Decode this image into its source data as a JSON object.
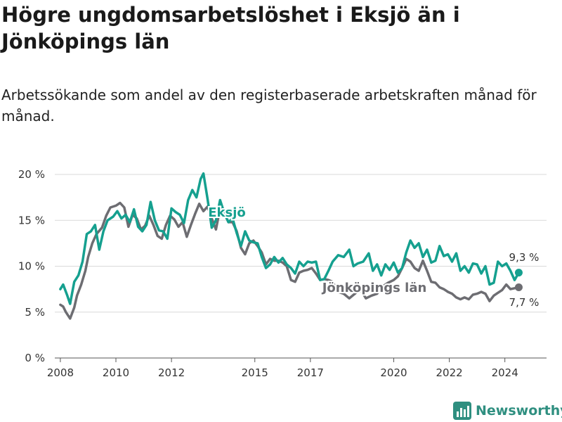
{
  "header": {
    "title": "Högre ungdomsarbetslöshet i Eksjö än i Jönköpings län",
    "subtitle": "Arbetssökande som andel av den registerbaserade arbetskraften månad för månad."
  },
  "brand": {
    "name": "Newsworthy"
  },
  "chart_data": {
    "type": "line",
    "title": "Högre ungdomsarbetslöshet i Eksjö än i Jönköpings län",
    "xlabel": "",
    "ylabel": "",
    "ylim": [
      0,
      20
    ],
    "xlim": [
      2007.8,
      2025.5
    ],
    "yticks": [
      {
        "value": 0,
        "label": "0 %"
      },
      {
        "value": 5,
        "label": "5 %"
      },
      {
        "value": 10,
        "label": "10 %"
      },
      {
        "value": 15,
        "label": "15 %"
      },
      {
        "value": 20,
        "label": "20 %"
      }
    ],
    "xticks": [
      {
        "value": 2008,
        "label": "2008"
      },
      {
        "value": 2010,
        "label": "2010"
      },
      {
        "value": 2012,
        "label": "2012"
      },
      {
        "value": 2015,
        "label": "2015"
      },
      {
        "value": 2017,
        "label": "2017"
      },
      {
        "value": 2020,
        "label": "2020"
      },
      {
        "value": 2022,
        "label": "2022"
      },
      {
        "value": 2024,
        "label": "2024"
      }
    ],
    "grid": true,
    "series": [
      {
        "name": "Jönköpings län",
        "color": "#6d6d72",
        "label": "Jönköpings län",
        "end_label": "7,7 %",
        "points": [
          [
            2008.0,
            5.8
          ],
          [
            2008.1,
            5.6
          ],
          [
            2008.2,
            5.0
          ],
          [
            2008.35,
            4.3
          ],
          [
            2008.5,
            5.5
          ],
          [
            2008.6,
            6.8
          ],
          [
            2008.75,
            8.0
          ],
          [
            2008.9,
            9.5
          ],
          [
            2009.0,
            11.0
          ],
          [
            2009.15,
            12.5
          ],
          [
            2009.3,
            13.5
          ],
          [
            2009.5,
            14.2
          ],
          [
            2009.65,
            15.5
          ],
          [
            2009.8,
            16.4
          ],
          [
            2010.0,
            16.6
          ],
          [
            2010.15,
            16.9
          ],
          [
            2010.3,
            16.4
          ],
          [
            2010.45,
            14.3
          ],
          [
            2010.6,
            15.6
          ],
          [
            2010.75,
            15.2
          ],
          [
            2010.9,
            14.0
          ],
          [
            2011.05,
            14.4
          ],
          [
            2011.2,
            15.5
          ],
          [
            2011.35,
            14.5
          ],
          [
            2011.5,
            13.3
          ],
          [
            2011.65,
            13.0
          ],
          [
            2011.8,
            14.5
          ],
          [
            2011.95,
            15.5
          ],
          [
            2012.1,
            15.1
          ],
          [
            2012.25,
            14.3
          ],
          [
            2012.4,
            14.8
          ],
          [
            2012.55,
            13.2
          ],
          [
            2012.7,
            14.5
          ],
          [
            2012.85,
            15.7
          ],
          [
            2013.0,
            16.8
          ],
          [
            2013.15,
            16.0
          ],
          [
            2013.3,
            16.5
          ],
          [
            2013.45,
            15.2
          ],
          [
            2013.6,
            14.0
          ],
          [
            2013.75,
            16.3
          ],
          [
            2013.9,
            15.8
          ],
          [
            2014.05,
            14.8
          ],
          [
            2014.2,
            14.8
          ],
          [
            2014.35,
            13.8
          ],
          [
            2014.5,
            12.0
          ],
          [
            2014.65,
            11.3
          ],
          [
            2014.8,
            12.5
          ],
          [
            2014.95,
            12.8
          ],
          [
            2015.1,
            12.2
          ],
          [
            2015.25,
            11.5
          ],
          [
            2015.4,
            10.2
          ],
          [
            2015.55,
            10.8
          ],
          [
            2015.7,
            10.6
          ],
          [
            2015.85,
            10.6
          ],
          [
            2016.0,
            10.4
          ],
          [
            2016.15,
            10.0
          ],
          [
            2016.3,
            8.5
          ],
          [
            2016.45,
            8.3
          ],
          [
            2016.6,
            9.3
          ],
          [
            2016.75,
            9.5
          ],
          [
            2016.9,
            9.6
          ],
          [
            2017.05,
            9.8
          ],
          [
            2017.2,
            9.2
          ],
          [
            2017.35,
            8.5
          ],
          [
            2017.5,
            8.6
          ],
          [
            2017.65,
            8.5
          ],
          [
            2017.8,
            8.3
          ],
          [
            2018.0,
            7.2
          ],
          [
            2018.2,
            7.0
          ],
          [
            2018.4,
            6.5
          ],
          [
            2018.6,
            7.0
          ],
          [
            2018.8,
            7.5
          ],
          [
            2019.0,
            6.5
          ],
          [
            2019.2,
            6.8
          ],
          [
            2019.4,
            7.0
          ],
          [
            2019.6,
            7.8
          ],
          [
            2019.8,
            8.2
          ],
          [
            2020.0,
            8.5
          ],
          [
            2020.15,
            8.9
          ],
          [
            2020.3,
            9.8
          ],
          [
            2020.45,
            10.8
          ],
          [
            2020.6,
            10.5
          ],
          [
            2020.75,
            9.8
          ],
          [
            2020.9,
            9.5
          ],
          [
            2021.05,
            10.6
          ],
          [
            2021.2,
            9.5
          ],
          [
            2021.35,
            8.3
          ],
          [
            2021.5,
            8.2
          ],
          [
            2021.65,
            7.7
          ],
          [
            2021.8,
            7.5
          ],
          [
            2021.95,
            7.2
          ],
          [
            2022.1,
            7.0
          ],
          [
            2022.25,
            6.6
          ],
          [
            2022.4,
            6.4
          ],
          [
            2022.55,
            6.6
          ],
          [
            2022.7,
            6.4
          ],
          [
            2022.85,
            6.9
          ],
          [
            2023.0,
            7.0
          ],
          [
            2023.15,
            7.2
          ],
          [
            2023.3,
            7.0
          ],
          [
            2023.45,
            6.2
          ],
          [
            2023.6,
            6.8
          ],
          [
            2023.75,
            7.1
          ],
          [
            2023.9,
            7.4
          ],
          [
            2024.05,
            8.0
          ],
          [
            2024.2,
            7.5
          ],
          [
            2024.35,
            7.6
          ],
          [
            2024.5,
            7.7
          ]
        ]
      },
      {
        "name": "Eksjö",
        "color": "#15a08f",
        "label": "Eksjö",
        "end_label": "9,3 %",
        "points": [
          [
            2008.0,
            7.5
          ],
          [
            2008.1,
            8.0
          ],
          [
            2008.25,
            6.8
          ],
          [
            2008.35,
            5.9
          ],
          [
            2008.5,
            8.3
          ],
          [
            2008.65,
            9.0
          ],
          [
            2008.8,
            10.5
          ],
          [
            2008.95,
            13.5
          ],
          [
            2009.1,
            13.8
          ],
          [
            2009.25,
            14.5
          ],
          [
            2009.4,
            11.8
          ],
          [
            2009.55,
            13.8
          ],
          [
            2009.7,
            15.0
          ],
          [
            2009.9,
            15.4
          ],
          [
            2010.05,
            16.0
          ],
          [
            2010.2,
            15.2
          ],
          [
            2010.35,
            15.6
          ],
          [
            2010.5,
            14.8
          ],
          [
            2010.65,
            16.2
          ],
          [
            2010.8,
            14.3
          ],
          [
            2010.95,
            13.8
          ],
          [
            2011.1,
            14.5
          ],
          [
            2011.25,
            17.0
          ],
          [
            2011.4,
            15.0
          ],
          [
            2011.55,
            13.9
          ],
          [
            2011.7,
            13.8
          ],
          [
            2011.85,
            13.0
          ],
          [
            2012.0,
            16.3
          ],
          [
            2012.15,
            15.9
          ],
          [
            2012.3,
            15.6
          ],
          [
            2012.45,
            14.7
          ],
          [
            2012.6,
            17.2
          ],
          [
            2012.75,
            18.3
          ],
          [
            2012.9,
            17.5
          ],
          [
            2013.05,
            19.5
          ],
          [
            2013.15,
            20.1
          ],
          [
            2013.3,
            17.3
          ],
          [
            2013.45,
            14.2
          ],
          [
            2013.6,
            15.0
          ],
          [
            2013.75,
            17.2
          ],
          [
            2013.9,
            15.8
          ],
          [
            2014.05,
            14.8
          ],
          [
            2014.2,
            15.2
          ],
          [
            2014.35,
            13.6
          ],
          [
            2014.5,
            12.2
          ],
          [
            2014.65,
            13.8
          ],
          [
            2014.8,
            12.8
          ],
          [
            2014.95,
            12.6
          ],
          [
            2015.1,
            12.5
          ],
          [
            2015.25,
            11.0
          ],
          [
            2015.4,
            9.8
          ],
          [
            2015.55,
            10.2
          ],
          [
            2015.7,
            11.0
          ],
          [
            2015.85,
            10.4
          ],
          [
            2016.0,
            10.9
          ],
          [
            2016.15,
            10.2
          ],
          [
            2016.3,
            9.8
          ],
          [
            2016.45,
            9.2
          ],
          [
            2016.6,
            10.5
          ],
          [
            2016.75,
            10.0
          ],
          [
            2016.9,
            10.5
          ],
          [
            2017.05,
            10.4
          ],
          [
            2017.2,
            10.5
          ],
          [
            2017.35,
            8.5
          ],
          [
            2017.5,
            8.6
          ],
          [
            2017.65,
            9.5
          ],
          [
            2017.8,
            10.5
          ],
          [
            2018.0,
            11.2
          ],
          [
            2018.2,
            11.0
          ],
          [
            2018.4,
            11.8
          ],
          [
            2018.55,
            10.0
          ],
          [
            2018.7,
            10.3
          ],
          [
            2018.9,
            10.5
          ],
          [
            2019.1,
            11.4
          ],
          [
            2019.25,
            9.5
          ],
          [
            2019.4,
            10.2
          ],
          [
            2019.55,
            9.0
          ],
          [
            2019.7,
            10.2
          ],
          [
            2019.85,
            9.6
          ],
          [
            2020.0,
            10.4
          ],
          [
            2020.15,
            9.3
          ],
          [
            2020.3,
            9.8
          ],
          [
            2020.45,
            11.5
          ],
          [
            2020.6,
            12.8
          ],
          [
            2020.75,
            12.0
          ],
          [
            2020.9,
            12.5
          ],
          [
            2021.05,
            11.0
          ],
          [
            2021.2,
            11.8
          ],
          [
            2021.35,
            10.4
          ],
          [
            2021.5,
            10.6
          ],
          [
            2021.65,
            12.2
          ],
          [
            2021.8,
            11.1
          ],
          [
            2021.95,
            11.3
          ],
          [
            2022.1,
            10.5
          ],
          [
            2022.25,
            11.4
          ],
          [
            2022.4,
            9.5
          ],
          [
            2022.55,
            10.0
          ],
          [
            2022.7,
            9.3
          ],
          [
            2022.85,
            10.3
          ],
          [
            2023.0,
            10.2
          ],
          [
            2023.15,
            9.2
          ],
          [
            2023.3,
            10.0
          ],
          [
            2023.45,
            8.0
          ],
          [
            2023.6,
            8.2
          ],
          [
            2023.75,
            10.5
          ],
          [
            2023.9,
            10.0
          ],
          [
            2024.05,
            10.3
          ],
          [
            2024.2,
            9.5
          ],
          [
            2024.35,
            8.5
          ],
          [
            2024.5,
            9.3
          ]
        ]
      }
    ]
  }
}
